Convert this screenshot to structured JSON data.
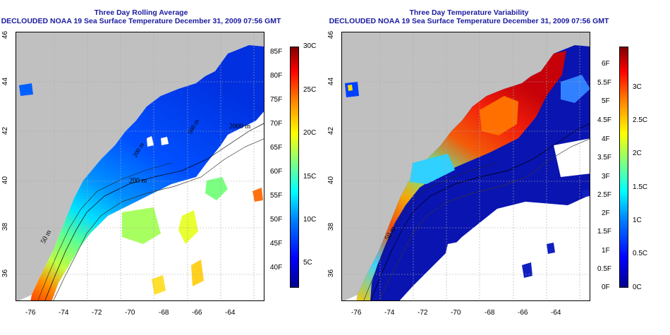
{
  "panels": [
    {
      "title_line1": "Three Day Rolling Average",
      "title_line2": "DECLOUDED NOAA 19 Sea Surface Temperature December 31, 2009 07:56 GMT",
      "x_ticks": [
        "-76",
        "-74",
        "-72",
        "-70",
        "-68",
        "-66",
        "-64"
      ],
      "y_ticks": [
        "36",
        "38",
        "40",
        "42",
        "44",
        "46"
      ],
      "contour_labels": [
        "2000 m",
        "200 m",
        "50 m",
        "200 m",
        "500 m"
      ],
      "colorbar": {
        "left_labels": [
          "85F",
          "80F",
          "75F",
          "70F",
          "65F",
          "60F",
          "55F",
          "50F",
          "45F",
          "40F"
        ],
        "right_labels": [
          "30C",
          "25C",
          "20C",
          "15C",
          "10C",
          "5C"
        ],
        "colors": [
          "#00008f",
          "#0000ff",
          "#0080ff",
          "#00ffff",
          "#80ff80",
          "#ffff00",
          "#ff8000",
          "#ff0000",
          "#800000"
        ]
      }
    },
    {
      "title_line1": "Three Day Temperature Variability",
      "title_line2": "DECLOUDED NOAA 19 Sea Surface Temperature December 31, 2009 07:56 GMT",
      "x_ticks": [
        "-76",
        "-74",
        "-72",
        "-70",
        "-68",
        "-66",
        "-64"
      ],
      "y_ticks": [
        "36",
        "38",
        "40",
        "42",
        "44",
        "46"
      ],
      "contour_labels": [
        "50 m"
      ],
      "colorbar": {
        "left_labels": [
          "6F",
          "5.5F",
          "5F",
          "4.5F",
          "4F",
          "3.5F",
          "3F",
          "2.5F",
          "2F",
          "1.5F",
          "1F",
          "0.5F",
          "0F"
        ],
        "right_labels": [
          "3C",
          "2.5C",
          "2C",
          "1.5C",
          "1C",
          "0.5C",
          "0C"
        ],
        "colors": [
          "#00008f",
          "#0000ff",
          "#0080ff",
          "#00ffff",
          "#80ff80",
          "#ffff00",
          "#ff8000",
          "#ff0000",
          "#800000"
        ]
      }
    }
  ],
  "land_color": "#c0c0c0"
}
